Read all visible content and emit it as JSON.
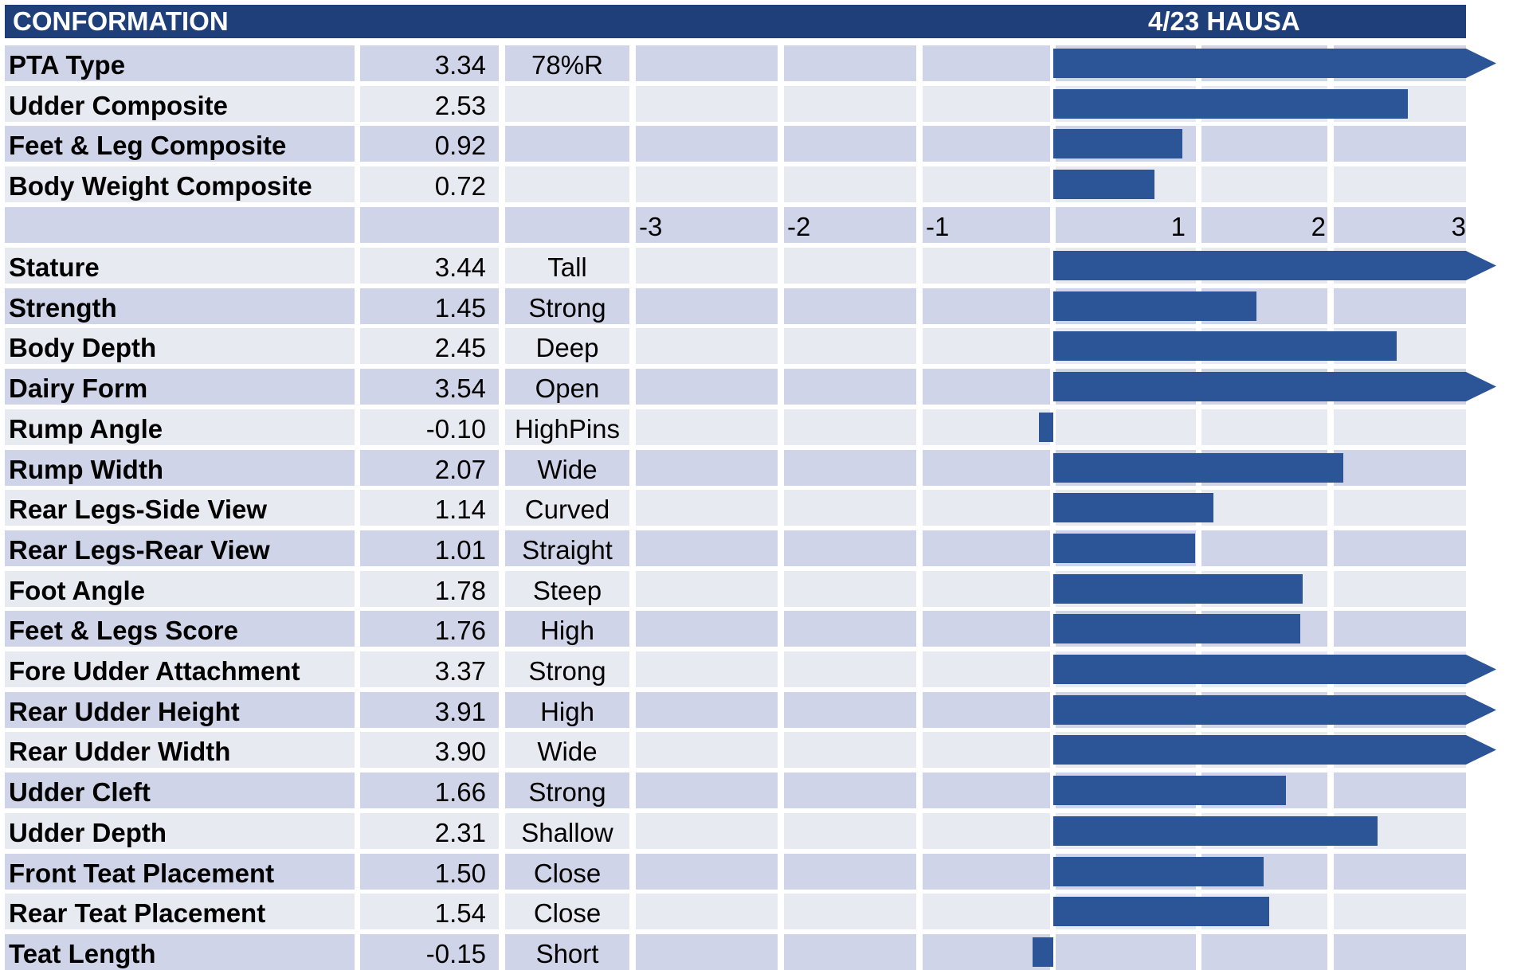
{
  "header": {
    "title": "CONFORMATION",
    "date_label": "4/23 HAUSA"
  },
  "colors": {
    "header_bg": "#1f3f7a",
    "band_dark": "#cfd4e8",
    "band_light": "#e8eaf2",
    "bar": "#2c5597"
  },
  "chart_data": {
    "type": "bar",
    "orientation": "horizontal",
    "xlim": [
      -3,
      3
    ],
    "x_ticks": [
      "-3",
      "-2",
      "-1",
      "1",
      "2",
      "3"
    ],
    "overflow_marker": "arrow",
    "composites": [
      {
        "name": "PTA Type",
        "value": 3.34,
        "value_label": "3.34",
        "descriptor": "78%R"
      },
      {
        "name": "Udder Composite",
        "value": 2.53,
        "value_label": "2.53",
        "descriptor": ""
      },
      {
        "name": "Feet & Leg Composite",
        "value": 0.92,
        "value_label": "0.92",
        "descriptor": ""
      },
      {
        "name": "Body Weight Composite",
        "value": 0.72,
        "value_label": "0.72",
        "descriptor": ""
      }
    ],
    "traits": [
      {
        "name": "Stature",
        "value": 3.44,
        "value_label": "3.44",
        "descriptor": "Tall"
      },
      {
        "name": "Strength",
        "value": 1.45,
        "value_label": "1.45",
        "descriptor": "Strong"
      },
      {
        "name": "Body Depth",
        "value": 2.45,
        "value_label": "2.45",
        "descriptor": "Deep"
      },
      {
        "name": "Dairy Form",
        "value": 3.54,
        "value_label": "3.54",
        "descriptor": "Open"
      },
      {
        "name": "Rump Angle",
        "value": -0.1,
        "value_label": "-0.10",
        "descriptor": "HighPins"
      },
      {
        "name": "Rump Width",
        "value": 2.07,
        "value_label": "2.07",
        "descriptor": "Wide"
      },
      {
        "name": "Rear Legs-Side View",
        "value": 1.14,
        "value_label": "1.14",
        "descriptor": "Curved"
      },
      {
        "name": "Rear Legs-Rear View",
        "value": 1.01,
        "value_label": "1.01",
        "descriptor": "Straight"
      },
      {
        "name": "Foot Angle",
        "value": 1.78,
        "value_label": "1.78",
        "descriptor": "Steep"
      },
      {
        "name": "Feet & Legs Score",
        "value": 1.76,
        "value_label": "1.76",
        "descriptor": "High"
      },
      {
        "name": "Fore Udder Attachment",
        "value": 3.37,
        "value_label": "3.37",
        "descriptor": "Strong"
      },
      {
        "name": "Rear Udder Height",
        "value": 3.91,
        "value_label": "3.91",
        "descriptor": "High"
      },
      {
        "name": "Rear Udder Width",
        "value": 3.9,
        "value_label": "3.90",
        "descriptor": "Wide"
      },
      {
        "name": "Udder Cleft",
        "value": 1.66,
        "value_label": "1.66",
        "descriptor": "Strong"
      },
      {
        "name": "Udder Depth",
        "value": 2.31,
        "value_label": "2.31",
        "descriptor": "Shallow"
      },
      {
        "name": "Front Teat Placement",
        "value": 1.5,
        "value_label": "1.50",
        "descriptor": "Close"
      },
      {
        "name": "Rear Teat Placement",
        "value": 1.54,
        "value_label": "1.54",
        "descriptor": "Close"
      },
      {
        "name": "Teat Length",
        "value": -0.15,
        "value_label": "-0.15",
        "descriptor": "Short"
      }
    ]
  }
}
